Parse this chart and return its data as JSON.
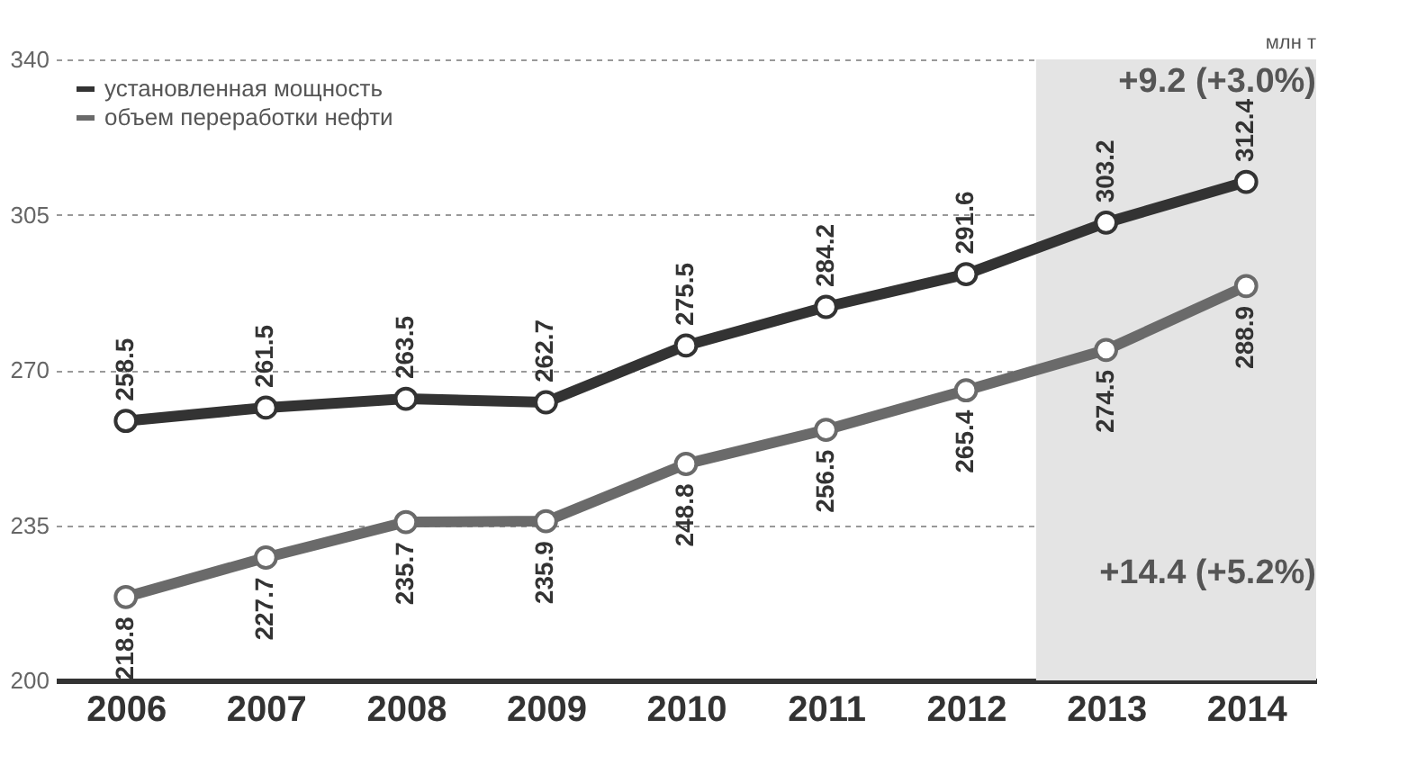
{
  "chart_data": {
    "type": "line",
    "ylabel": "млн т",
    "categories": [
      "2006",
      "2007",
      "2008",
      "2009",
      "2010",
      "2011",
      "2012",
      "2013",
      "2014"
    ],
    "series": [
      {
        "name": "установленная мощность",
        "color": "#333333",
        "values": [
          258.5,
          261.5,
          263.5,
          262.7,
          275.5,
          284.2,
          291.6,
          303.2,
          312.4
        ]
      },
      {
        "name": "объем переработки нефти",
        "color": "#6a6a6a",
        "values": [
          218.8,
          227.7,
          235.7,
          235.9,
          248.8,
          256.5,
          265.4,
          274.5,
          288.9
        ]
      }
    ],
    "ylim": [
      200,
      340
    ],
    "yticks": [
      200,
      235,
      270,
      305,
      340
    ],
    "grid": "y",
    "legend": "top left",
    "marker": "circle",
    "line_style": "solid",
    "data_labels": true,
    "bands": [
      {
        "axis": "x",
        "from": "2013",
        "to": "2014",
        "color": "#e4e4e4"
      }
    ],
    "annotations": [
      "+9.2 (+3.0%)",
      "+14.4 (+5.2%)"
    ]
  }
}
